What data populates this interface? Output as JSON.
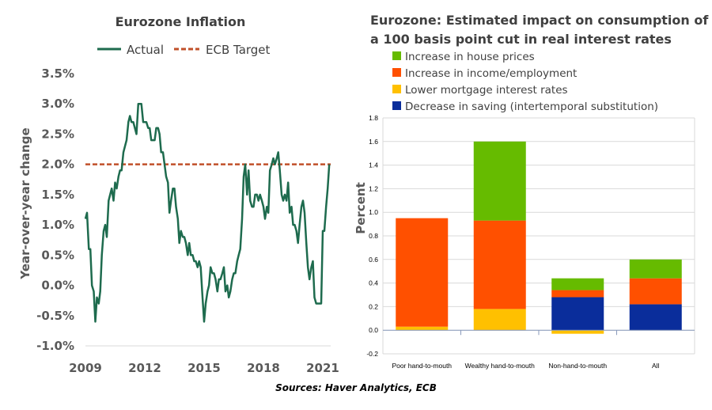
{
  "source_note": "Sources: Haver Analytics, ECB",
  "chart_data": [
    {
      "type": "line",
      "title": "Eurozone Inflation",
      "xlabel": "",
      "ylabel": "Year-over-year change",
      "ylim": [
        -1.0,
        3.5
      ],
      "xlim": [
        2009,
        2021.4
      ],
      "yticks": [
        -1.0,
        -0.5,
        0.0,
        0.5,
        1.0,
        1.5,
        2.0,
        2.5,
        3.0,
        3.5
      ],
      "ytick_labels": [
        "-1.0%",
        "-0.5%",
        "0.0%",
        "0.5%",
        "1.0%",
        "1.5%",
        "2.0%",
        "2.5%",
        "3.0%",
        "3.5%"
      ],
      "xticks": [
        2009,
        2012,
        2015,
        2018,
        2021
      ],
      "xtick_labels": [
        "2009",
        "2012",
        "2015",
        "2018",
        "2021"
      ],
      "legend": [
        "Actual",
        "ECB Target"
      ],
      "series": [
        {
          "name": "Actual",
          "color": "#1e6b4e",
          "style": "solid",
          "x": [
            2009.0,
            2009.08,
            2009.17,
            2009.25,
            2009.33,
            2009.42,
            2009.5,
            2009.58,
            2009.67,
            2009.75,
            2009.83,
            2009.92,
            2010.0,
            2010.08,
            2010.17,
            2010.25,
            2010.33,
            2010.42,
            2010.5,
            2010.58,
            2010.67,
            2010.75,
            2010.83,
            2010.92,
            2011.0,
            2011.08,
            2011.17,
            2011.25,
            2011.33,
            2011.42,
            2011.5,
            2011.58,
            2011.67,
            2011.75,
            2011.83,
            2011.92,
            2012.0,
            2012.08,
            2012.17,
            2012.25,
            2012.33,
            2012.42,
            2012.5,
            2012.58,
            2012.67,
            2012.75,
            2012.83,
            2012.92,
            2013.0,
            2013.08,
            2013.17,
            2013.25,
            2013.33,
            2013.42,
            2013.5,
            2013.58,
            2013.67,
            2013.75,
            2013.83,
            2013.92,
            2014.0,
            2014.08,
            2014.17,
            2014.25,
            2014.33,
            2014.42,
            2014.5,
            2014.58,
            2014.67,
            2014.75,
            2014.83,
            2014.92,
            2015.0,
            2015.08,
            2015.17,
            2015.25,
            2015.33,
            2015.42,
            2015.5,
            2015.58,
            2015.67,
            2015.75,
            2015.83,
            2015.92,
            2016.0,
            2016.08,
            2016.17,
            2016.25,
            2016.33,
            2016.42,
            2016.5,
            2016.58,
            2016.67,
            2016.75,
            2016.83,
            2016.92,
            2017.0,
            2017.08,
            2017.17,
            2017.25,
            2017.33,
            2017.42,
            2017.5,
            2017.58,
            2017.67,
            2017.75,
            2017.83,
            2017.92,
            2018.0,
            2018.08,
            2018.17,
            2018.25,
            2018.33,
            2018.42,
            2018.5,
            2018.58,
            2018.67,
            2018.75,
            2018.83,
            2018.92,
            2019.0,
            2019.08,
            2019.17,
            2019.25,
            2019.33,
            2019.42,
            2019.5,
            2019.58,
            2019.67,
            2019.75,
            2019.83,
            2019.92,
            2020.0,
            2020.08,
            2020.17,
            2020.25,
            2020.33,
            2020.42,
            2020.5,
            2020.58,
            2020.67,
            2020.75,
            2020.83,
            2020.92,
            2021.0,
            2021.08,
            2021.17,
            2021.25,
            2021.33
          ],
          "values": [
            1.1,
            1.2,
            0.6,
            0.6,
            0.0,
            -0.1,
            -0.6,
            -0.2,
            -0.3,
            -0.1,
            0.5,
            0.9,
            1.0,
            0.8,
            1.4,
            1.5,
            1.6,
            1.4,
            1.7,
            1.6,
            1.8,
            1.9,
            1.9,
            2.2,
            2.3,
            2.4,
            2.7,
            2.8,
            2.7,
            2.7,
            2.6,
            2.5,
            3.0,
            3.0,
            3.0,
            2.7,
            2.7,
            2.7,
            2.6,
            2.6,
            2.4,
            2.4,
            2.4,
            2.6,
            2.6,
            2.5,
            2.2,
            2.2,
            2.0,
            1.8,
            1.7,
            1.2,
            1.4,
            1.6,
            1.6,
            1.3,
            1.1,
            0.7,
            0.9,
            0.8,
            0.8,
            0.7,
            0.5,
            0.7,
            0.5,
            0.5,
            0.4,
            0.4,
            0.3,
            0.4,
            0.3,
            -0.2,
            -0.6,
            -0.3,
            -0.1,
            0.0,
            0.3,
            0.2,
            0.2,
            0.1,
            -0.1,
            0.1,
            0.1,
            0.2,
            0.3,
            -0.1,
            0.0,
            -0.2,
            -0.1,
            0.1,
            0.2,
            0.2,
            0.4,
            0.5,
            0.6,
            1.1,
            1.8,
            2.0,
            1.5,
            1.9,
            1.4,
            1.3,
            1.3,
            1.5,
            1.5,
            1.4,
            1.5,
            1.4,
            1.3,
            1.1,
            1.3,
            1.2,
            1.9,
            2.0,
            2.1,
            2.0,
            2.1,
            2.2,
            1.9,
            1.5,
            1.4,
            1.5,
            1.4,
            1.7,
            1.2,
            1.3,
            1.0,
            1.0,
            0.9,
            0.7,
            1.0,
            1.3,
            1.4,
            1.2,
            0.7,
            0.3,
            0.1,
            0.3,
            0.4,
            -0.2,
            -0.3,
            -0.3,
            -0.3,
            -0.3,
            0.9,
            0.9,
            1.3,
            1.6,
            2.0
          ],
          "note": "Approximate monthly values read from the chart"
        },
        {
          "name": "ECB Target",
          "color": "#c0502a",
          "style": "dashed",
          "x": [
            2009,
            2021.4
          ],
          "values": [
            2.0,
            2.0
          ]
        }
      ]
    },
    {
      "type": "stacked-bar",
      "title_lines": [
        "Eurozone: Estimated impact on consumption of",
        "a 100 basis point cut in real interest rates"
      ],
      "xlabel": "",
      "ylabel": "Percent",
      "ylim": [
        -0.2,
        1.8
      ],
      "yticks": [
        -0.2,
        0.0,
        0.2,
        0.4,
        0.6,
        0.8,
        1.0,
        1.2,
        1.4,
        1.6,
        1.8
      ],
      "ytick_labels": [
        "-0.2",
        "0.0",
        "0.2",
        "0.4",
        "0.6",
        "0.8",
        "1.0",
        "1.2",
        "1.4",
        "1.6",
        "1.8"
      ],
      "categories": [
        "Poor hand-to-mouth",
        "Wealthy hand-to-mouth",
        "Non-hand-to-mouth",
        "All"
      ],
      "legend": [
        "Increase in house prices",
        "Increase in income/employment",
        "Lower mortgage interest rates",
        "Decrease in saving (intertemporal substitution)"
      ],
      "series": [
        {
          "name": "Decrease in saving (intertemporal substitution)",
          "color": "#0a2d9b",
          "values": [
            0.0,
            0.0,
            0.28,
            0.22
          ]
        },
        {
          "name": "Lower mortgage interest rates",
          "color": "#ffc000",
          "values": [
            0.03,
            0.18,
            -0.03,
            0.0
          ]
        },
        {
          "name": "Increase in income/employment",
          "color": "#ff5000",
          "values": [
            0.92,
            0.75,
            0.06,
            0.22
          ]
        },
        {
          "name": "Increase in house prices",
          "color": "#66bb00",
          "values": [
            0.0,
            0.67,
            0.1,
            0.16
          ]
        }
      ]
    }
  ]
}
